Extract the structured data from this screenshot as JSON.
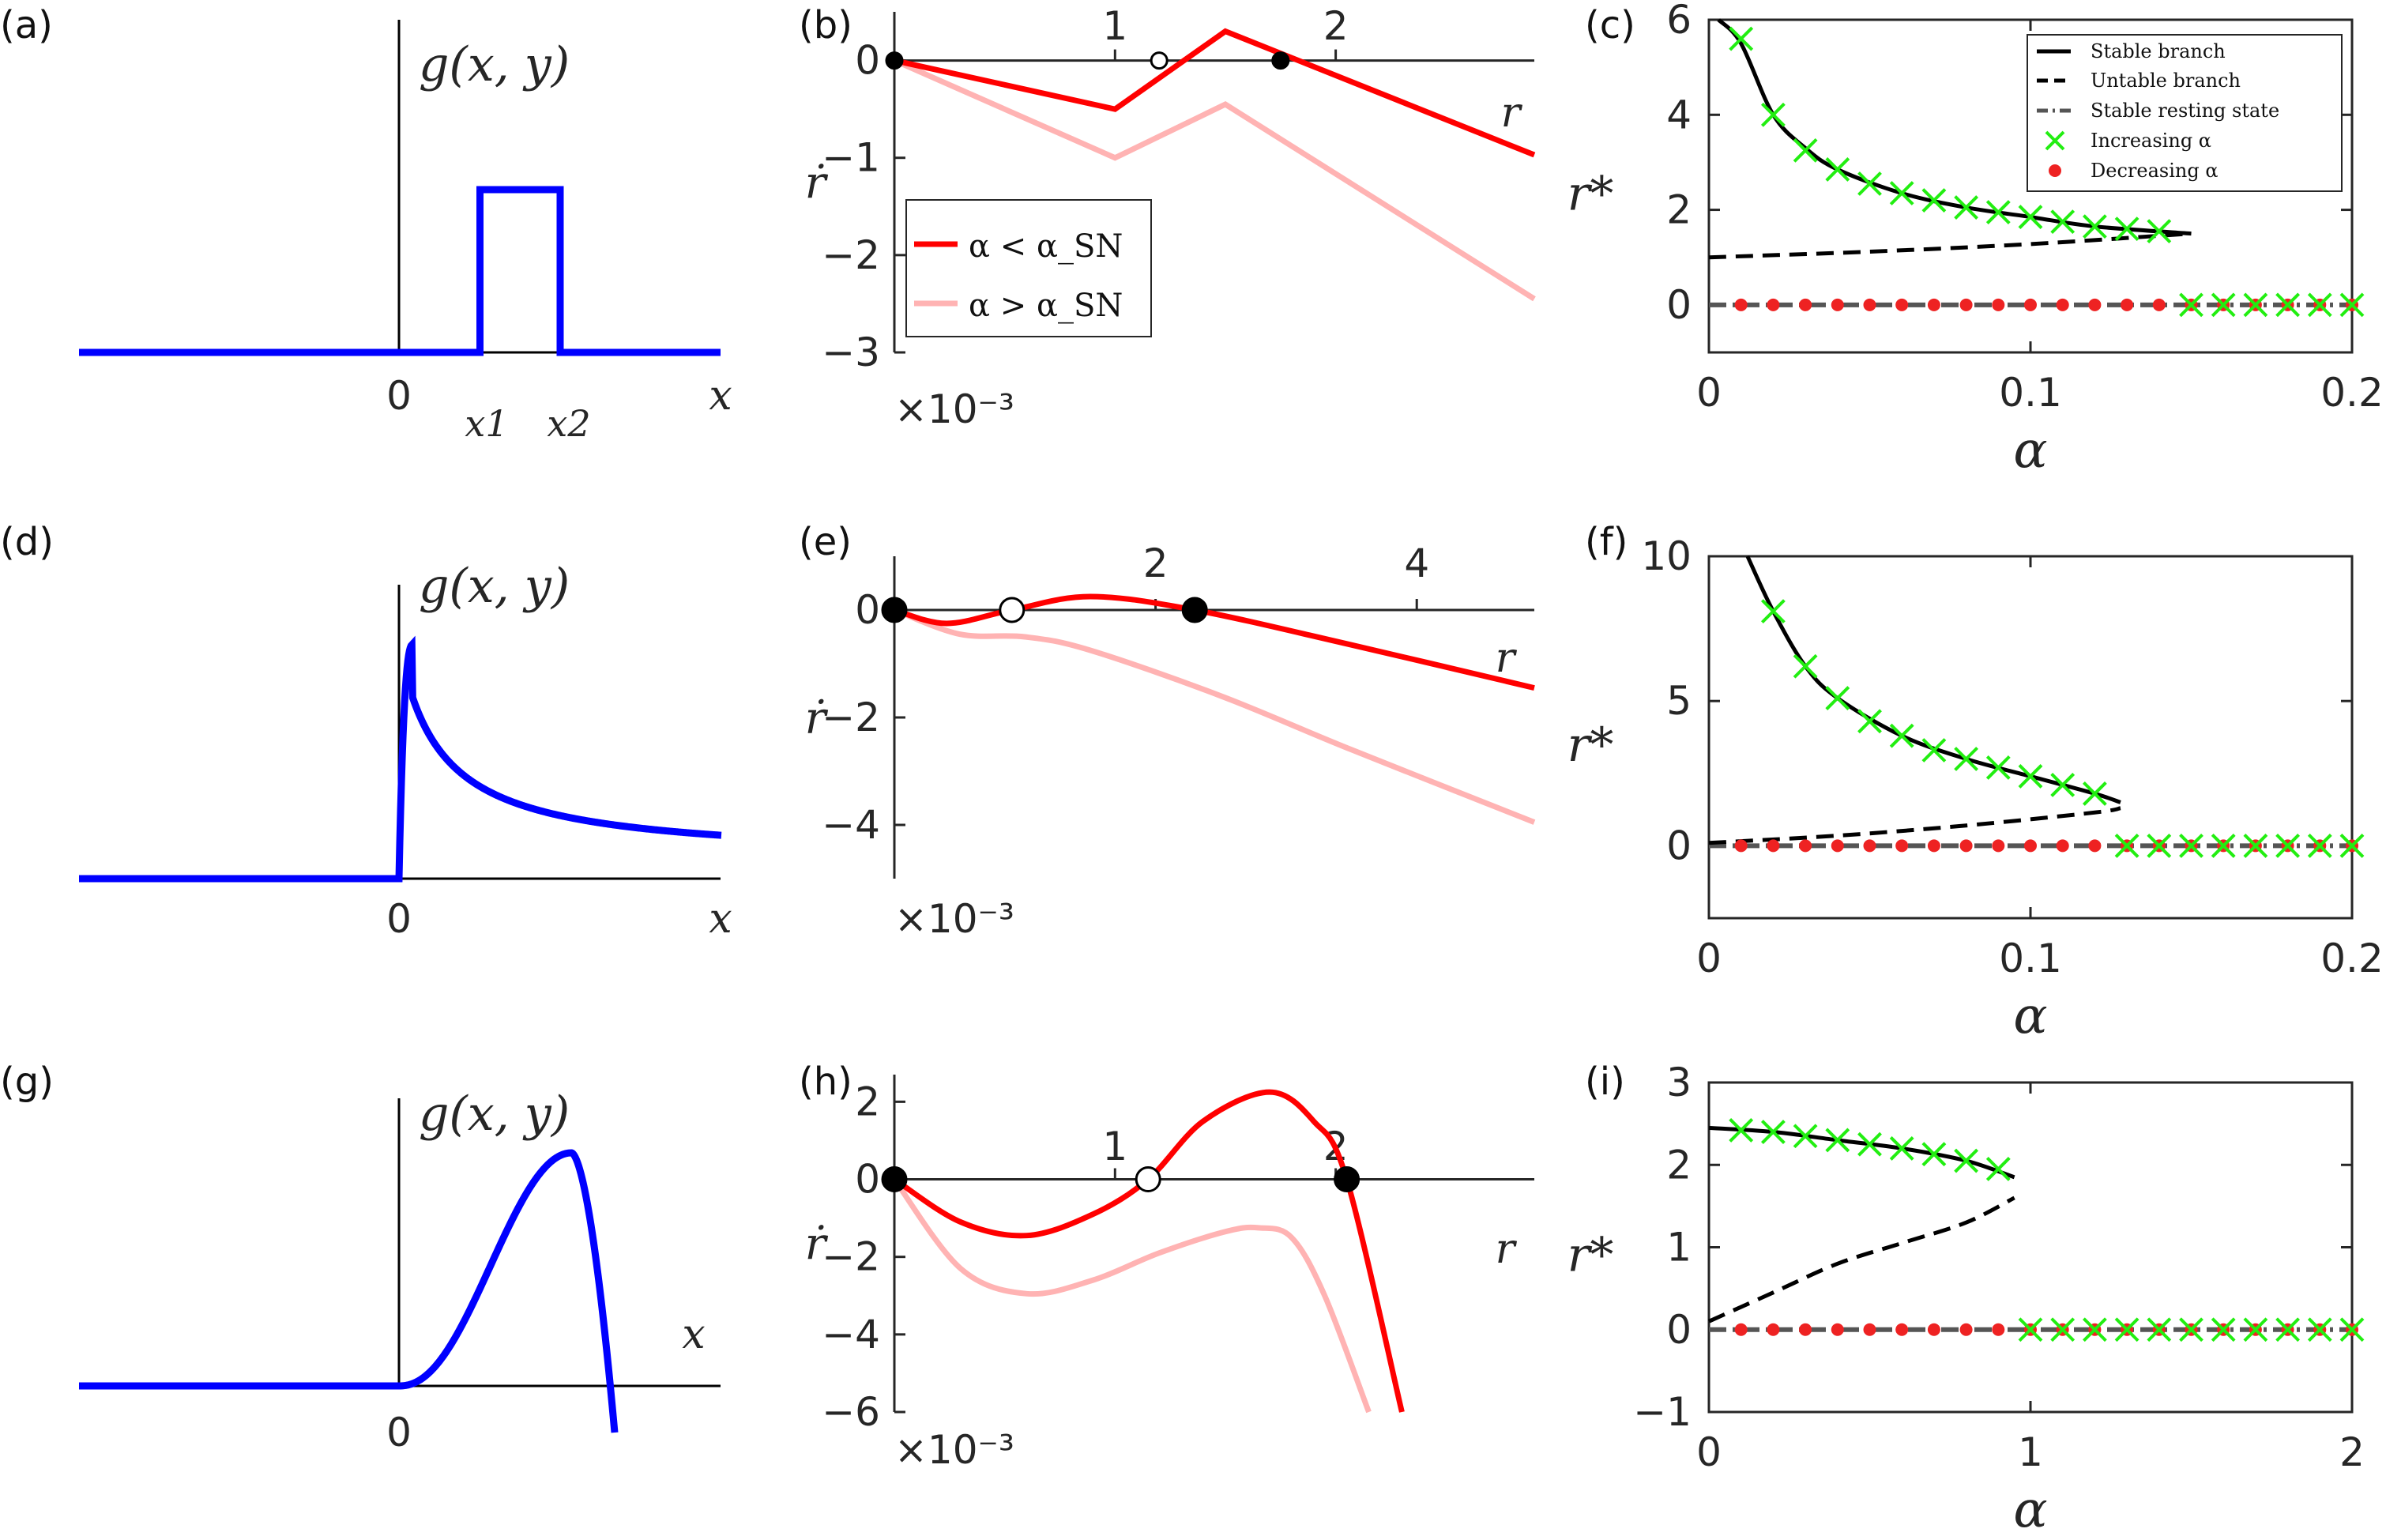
{
  "colors": {
    "blue": "#0000ff",
    "red": "#ff0000",
    "pink": "#ffb3b3",
    "black": "#000000",
    "green": "#22ee11",
    "dot": "#ee2222",
    "gray": "#555555"
  },
  "panel_labels": [
    "(a)",
    "(b)",
    "(c)",
    "(d)",
    "(e)",
    "(f)",
    "(g)",
    "(h)",
    "(i)"
  ],
  "texts": {
    "g_label": "g(x, y)",
    "x_label": "x",
    "zero": "0",
    "x1": "x1",
    "x2": "x2",
    "r_label": "r",
    "rdot_label": "ṙ",
    "rstar_label": "r*",
    "alpha_label": "α",
    "scale_label": "×10⁻³",
    "legend_b_lt": "α < α_SN",
    "legend_b_gt": "α > α_SN"
  },
  "legend_c": [
    "Stable branch",
    "Untable branch",
    "Stable resting state",
    "Increasing α",
    "Decreasing α"
  ],
  "chart_data": [
    {
      "id": "a",
      "type": "line",
      "title": "",
      "description": "rectangular pulse g(x,y) between x1 and x2",
      "x": [
        -10,
        0,
        2.5,
        2.5,
        5,
        5,
        10
      ],
      "y": [
        0,
        0,
        0,
        1.0,
        1.0,
        0,
        0
      ],
      "xticks": [
        "0",
        "x1",
        "x2"
      ],
      "xlabel": "x",
      "ylabel": "g(x, y)"
    },
    {
      "id": "b",
      "type": "line",
      "xlim": [
        0,
        2.9
      ],
      "ylim": [
        -3,
        0.5
      ],
      "xticks": [
        1,
        2
      ],
      "yticks": [
        0,
        -1,
        -2,
        -3
      ],
      "xlabel": "r",
      "ylabel": "ṙ",
      "yscale_note": "×10⁻³",
      "series": [
        {
          "name": "α < α_SN",
          "x": [
            0,
            1.0,
            1.5,
            2.9
          ],
          "y": [
            0,
            -0.5,
            0.3,
            -0.97
          ]
        },
        {
          "name": "α > α_SN",
          "x": [
            0,
            1.0,
            1.5,
            2.9
          ],
          "y": [
            0,
            -1.0,
            -0.45,
            -2.45
          ]
        }
      ],
      "fixed_points": [
        {
          "r": 0,
          "stable": true
        },
        {
          "r": 1.2,
          "stable": false
        },
        {
          "r": 1.75,
          "stable": true
        }
      ]
    },
    {
      "id": "c",
      "type": "line",
      "xlim": [
        0,
        0.2
      ],
      "ylim": [
        -1,
        6
      ],
      "xticks": [
        0,
        0.1,
        0.2
      ],
      "yticks": [
        0,
        2,
        4,
        6
      ],
      "xlabel": "α",
      "ylabel": "r*",
      "series": [
        {
          "name": "Stable branch",
          "x": [
            0.003,
            0.01,
            0.02,
            0.03,
            0.04,
            0.06,
            0.08,
            0.1,
            0.12,
            0.15
          ],
          "y": [
            6.0,
            5.5,
            4.0,
            3.3,
            2.85,
            2.35,
            2.05,
            1.85,
            1.65,
            1.5
          ]
        },
        {
          "name": "Untable branch",
          "x": [
            0,
            0.05,
            0.1,
            0.15
          ],
          "y": [
            1.0,
            1.12,
            1.28,
            1.5
          ]
        },
        {
          "name": "Stable resting state",
          "x": [
            0,
            0.2
          ],
          "y": [
            0,
            0
          ]
        },
        {
          "name": "Increasing α",
          "x": [
            0.01,
            0.02,
            0.03,
            0.04,
            0.05,
            0.06,
            0.07,
            0.08,
            0.09,
            0.1,
            0.11,
            0.12,
            0.13,
            0.14,
            0.15,
            0.16,
            0.17,
            0.18,
            0.19,
            0.2
          ],
          "y": [
            5.6,
            4.0,
            3.25,
            2.85,
            2.55,
            2.35,
            2.2,
            2.05,
            1.95,
            1.85,
            1.75,
            1.65,
            1.6,
            1.55,
            0,
            0,
            0,
            0,
            0,
            0
          ]
        },
        {
          "name": "Decreasing α",
          "x": [
            0.01,
            0.02,
            0.03,
            0.04,
            0.05,
            0.06,
            0.07,
            0.08,
            0.09,
            0.1,
            0.11,
            0.12,
            0.13,
            0.14,
            0.15,
            0.16,
            0.17,
            0.18,
            0.19,
            0.2
          ],
          "y": [
            0,
            0,
            0,
            0,
            0,
            0,
            0,
            0,
            0,
            0,
            0,
            0,
            0,
            0,
            0,
            0,
            0,
            0,
            0,
            0
          ]
        }
      ]
    },
    {
      "id": "d",
      "type": "line",
      "description": "sharp peak after 0 with slow decay",
      "xticks": [
        "0"
      ],
      "xlabel": "x",
      "ylabel": "g(x, y)"
    },
    {
      "id": "e",
      "type": "line",
      "xlim": [
        0,
        4.9
      ],
      "ylim": [
        -5,
        1
      ],
      "xticks": [
        2,
        4
      ],
      "yticks": [
        0,
        -2,
        -4
      ],
      "xlabel": "r",
      "ylabel": "ṙ",
      "yscale_note": "×10⁻³",
      "series": [
        {
          "name": "α < α_SN",
          "x": [
            0,
            0.4,
            0.9,
            1.5,
            2.3,
            3.5,
            4.9
          ],
          "y": [
            0,
            -0.25,
            0,
            0.25,
            0,
            -0.65,
            -1.45
          ]
        },
        {
          "name": "α > α_SN",
          "x": [
            0,
            0.5,
            1.0,
            1.5,
            2.5,
            3.5,
            4.9
          ],
          "y": [
            0,
            -0.45,
            -0.5,
            -0.75,
            -1.6,
            -2.6,
            -3.95
          ]
        }
      ],
      "fixed_points": [
        {
          "r": 0,
          "stable": true
        },
        {
          "r": 0.9,
          "stable": false
        },
        {
          "r": 2.3,
          "stable": true
        }
      ]
    },
    {
      "id": "f",
      "type": "line",
      "xlim": [
        0,
        0.2
      ],
      "ylim": [
        -2.5,
        10
      ],
      "xticks": [
        0,
        0.1,
        0.2
      ],
      "yticks": [
        0,
        5,
        10
      ],
      "xlabel": "α",
      "ylabel": "r*",
      "series": [
        {
          "name": "Stable branch",
          "x": [
            0.012,
            0.02,
            0.03,
            0.04,
            0.06,
            0.08,
            0.1,
            0.12,
            0.128
          ],
          "y": [
            10,
            8.1,
            6.2,
            5.1,
            3.8,
            3.0,
            2.4,
            1.8,
            1.5
          ]
        },
        {
          "name": "Untable branch",
          "x": [
            0,
            0.04,
            0.08,
            0.12,
            0.128
          ],
          "y": [
            0.1,
            0.35,
            0.7,
            1.15,
            1.3
          ]
        },
        {
          "name": "Stable resting state",
          "x": [
            0,
            0.2
          ],
          "y": [
            0,
            0
          ]
        },
        {
          "name": "Increasing α",
          "x": [
            0.02,
            0.03,
            0.04,
            0.05,
            0.06,
            0.07,
            0.08,
            0.09,
            0.1,
            0.11,
            0.12,
            0.13,
            0.14,
            0.15,
            0.16,
            0.17,
            0.18,
            0.19,
            0.2
          ],
          "y": [
            8.1,
            6.2,
            5.1,
            4.3,
            3.8,
            3.3,
            3.0,
            2.7,
            2.4,
            2.1,
            1.8,
            0,
            0,
            0,
            0,
            0,
            0,
            0,
            0
          ]
        },
        {
          "name": "Decreasing α",
          "x": [
            0.01,
            0.02,
            0.03,
            0.04,
            0.05,
            0.06,
            0.07,
            0.08,
            0.09,
            0.1,
            0.11,
            0.12,
            0.13,
            0.14,
            0.15,
            0.16,
            0.17,
            0.18,
            0.19,
            0.2
          ],
          "y": [
            0,
            0,
            0,
            0,
            0,
            0,
            0,
            0,
            0,
            0,
            0,
            0,
            0,
            0,
            0,
            0,
            0,
            0,
            0,
            0
          ]
        }
      ]
    },
    {
      "id": "g",
      "type": "line",
      "description": "smooth hump after 0, dropping sharply below axis",
      "xticks": [
        "0"
      ],
      "xlabel": "x",
      "ylabel": "g(x, y)"
    },
    {
      "id": "h",
      "type": "line",
      "xlim": [
        0,
        2.9
      ],
      "ylim": [
        -6,
        2.7
      ],
      "xticks": [
        1,
        2
      ],
      "yticks": [
        2,
        0,
        -2,
        -4,
        -6
      ],
      "xlabel": "r",
      "ylabel": "ṙ",
      "yscale_note": "×10⁻³",
      "series": [
        {
          "name": "α < α_SN",
          "x": [
            0,
            0.3,
            0.6,
            0.9,
            1.15,
            1.4,
            1.7,
            1.9,
            2.05,
            2.3
          ],
          "y": [
            0,
            -1.1,
            -1.45,
            -0.9,
            0,
            1.5,
            2.25,
            1.5,
            0,
            -6
          ]
        },
        {
          "name": "α > α_SN",
          "x": [
            0,
            0.3,
            0.6,
            0.9,
            1.2,
            1.5,
            1.65,
            1.8,
            1.95,
            2.15
          ],
          "y": [
            0,
            -2.3,
            -2.95,
            -2.6,
            -1.9,
            -1.35,
            -1.25,
            -1.5,
            -3.0,
            -6
          ]
        }
      ],
      "fixed_points": [
        {
          "r": 0,
          "stable": true
        },
        {
          "r": 1.15,
          "stable": false
        },
        {
          "r": 2.05,
          "stable": true
        }
      ]
    },
    {
      "id": "i",
      "type": "line",
      "xlim": [
        0,
        2
      ],
      "ylim": [
        -1,
        3
      ],
      "xticks": [
        0,
        1,
        2
      ],
      "yticks": [
        -1,
        0,
        1,
        2,
        3
      ],
      "xlabel": "α",
      "ylabel": "r*",
      "series": [
        {
          "name": "Stable branch",
          "x": [
            0,
            0.2,
            0.4,
            0.6,
            0.8,
            0.95
          ],
          "y": [
            2.45,
            2.4,
            2.3,
            2.2,
            2.05,
            1.85
          ]
        },
        {
          "name": "Untable branch",
          "x": [
            0,
            0.2,
            0.4,
            0.6,
            0.8,
            0.95
          ],
          "y": [
            0.1,
            0.45,
            0.8,
            1.05,
            1.3,
            1.6
          ]
        },
        {
          "name": "Stable resting state",
          "x": [
            0,
            2
          ],
          "y": [
            0,
            0
          ]
        },
        {
          "name": "Increasing α",
          "x": [
            0.1,
            0.2,
            0.3,
            0.4,
            0.5,
            0.6,
            0.7,
            0.8,
            0.9,
            1.0,
            1.1,
            1.2,
            1.3,
            1.4,
            1.5,
            1.6,
            1.7,
            1.8,
            1.9,
            2.0
          ],
          "y": [
            2.42,
            2.4,
            2.35,
            2.3,
            2.25,
            2.2,
            2.13,
            2.05,
            1.95,
            0,
            0,
            0,
            0,
            0,
            0,
            0,
            0,
            0,
            0,
            0
          ]
        },
        {
          "name": "Decreasing α",
          "x": [
            0.1,
            0.2,
            0.3,
            0.4,
            0.5,
            0.6,
            0.7,
            0.8,
            0.9,
            1.0,
            1.1,
            1.2,
            1.3,
            1.4,
            1.5,
            1.6,
            1.7,
            1.8,
            1.9,
            2.0
          ],
          "y": [
            0,
            0,
            0,
            0,
            0,
            0,
            0,
            0,
            0,
            0,
            0,
            0,
            0,
            0,
            0,
            0,
            0,
            0,
            0,
            0
          ]
        }
      ]
    }
  ]
}
